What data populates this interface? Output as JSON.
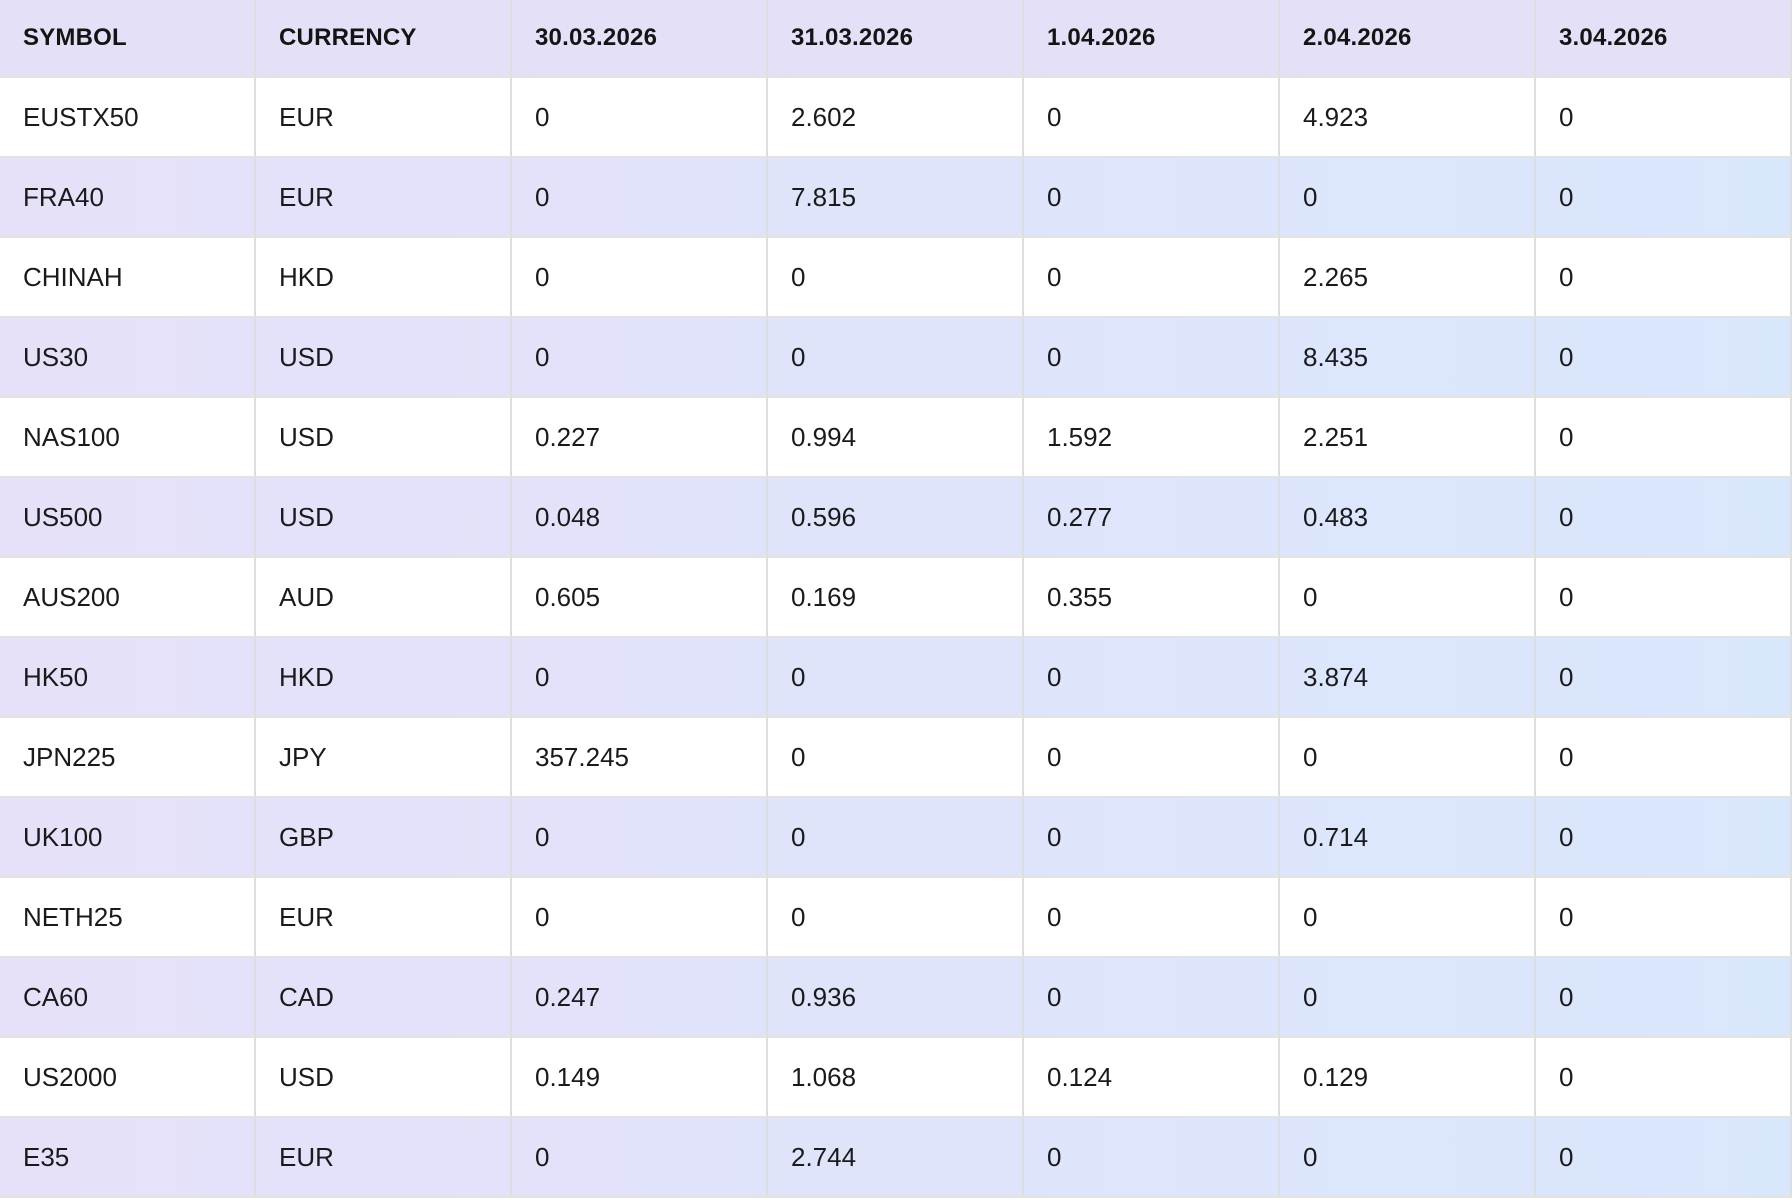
{
  "table": {
    "columns": [
      "SYMBOL",
      "CURRENCY",
      "30.03.2026",
      "31.03.2026",
      "1.04.2026",
      "2.04.2026",
      "3.04.2026"
    ],
    "rows": [
      [
        "EUSTX50",
        "EUR",
        "0",
        "2.602",
        "0",
        "4.923",
        "0"
      ],
      [
        "FRA40",
        "EUR",
        "0",
        "7.815",
        "0",
        "0",
        "0"
      ],
      [
        "CHINAH",
        "HKD",
        "0",
        "0",
        "0",
        "2.265",
        "0"
      ],
      [
        "US30",
        "USD",
        "0",
        "0",
        "0",
        "8.435",
        "0"
      ],
      [
        "NAS100",
        "USD",
        "0.227",
        "0.994",
        "1.592",
        "2.251",
        "0"
      ],
      [
        "US500",
        "USD",
        "0.048",
        "0.596",
        "0.277",
        "0.483",
        "0"
      ],
      [
        "AUS200",
        "AUD",
        "0.605",
        "0.169",
        "0.355",
        "0",
        "0"
      ],
      [
        "HK50",
        "HKD",
        "0",
        "0",
        "0",
        "3.874",
        "0"
      ],
      [
        "JPN225",
        "JPY",
        "357.245",
        "0",
        "0",
        "0",
        "0"
      ],
      [
        "UK100",
        "GBP",
        "0",
        "0",
        "0",
        "0.714",
        "0"
      ],
      [
        "NETH25",
        "EUR",
        "0",
        "0",
        "0",
        "0",
        "0"
      ],
      [
        "CA60",
        "CAD",
        "0.247",
        "0.936",
        "0",
        "0",
        "0"
      ],
      [
        "US2000",
        "USD",
        "0.149",
        "1.068",
        "0.124",
        "0.129",
        "0"
      ],
      [
        "E35",
        "EUR",
        "0",
        "2.744",
        "0",
        "0",
        "0"
      ]
    ]
  },
  "colors": {
    "header_bg": "#e4e0f7",
    "stripe_left": "#e6e1f9",
    "stripe_right": "#d9e7fd",
    "row_bg": "#ffffff",
    "grid_line": "#e2e2e2",
    "column_line": "#dedede",
    "text": "#1a1a1a",
    "header_text": "#141414"
  }
}
